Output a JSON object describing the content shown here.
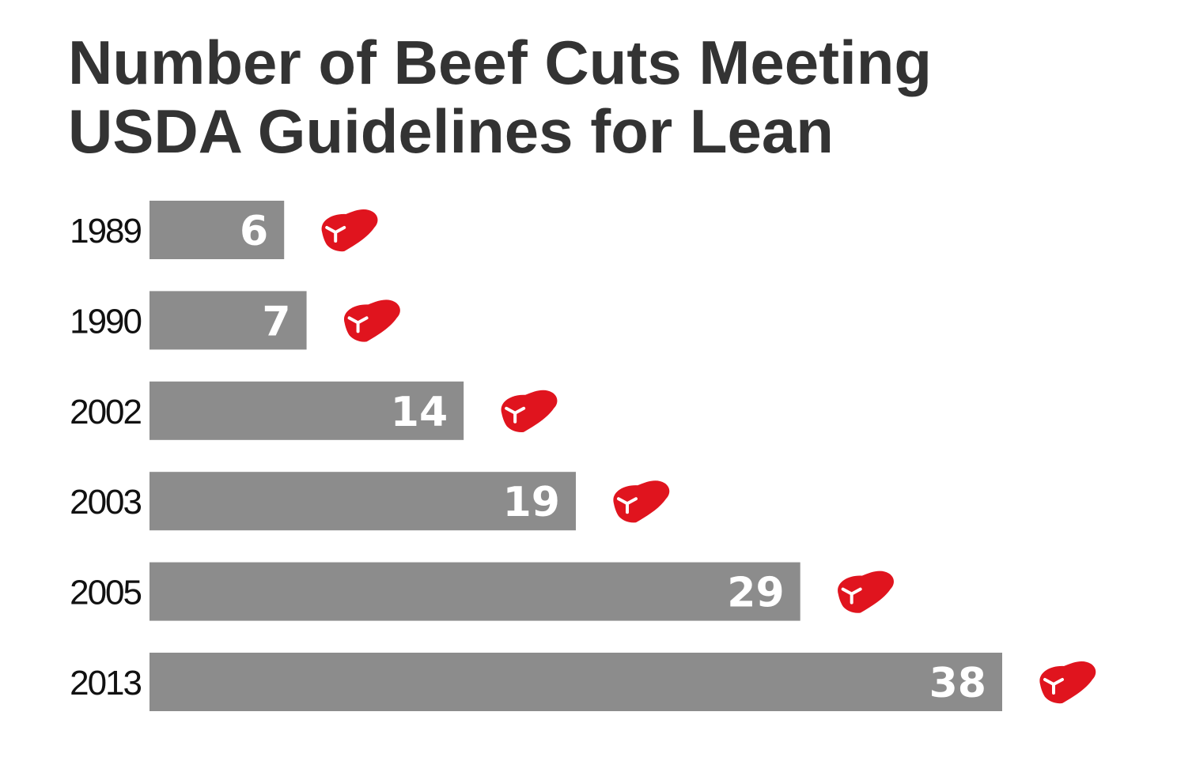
{
  "chart_data": {
    "type": "bar",
    "orientation": "horizontal",
    "title_lines": [
      "Number of Beef Cuts Meeting",
      "USDA Guidelines for Lean"
    ],
    "categories": [
      "1989",
      "1990",
      "2002",
      "2003",
      "2005",
      "2013"
    ],
    "values": [
      6,
      7,
      14,
      19,
      29,
      38
    ],
    "xlim": [
      0,
      38
    ],
    "grid": false,
    "legend": "none",
    "marker_icon": "steak-icon",
    "colors": {
      "bar": "#8c8c8c",
      "value_label": "#ffffff",
      "icon": "#e0141e",
      "title": "#333333",
      "category_label": "#111111"
    }
  }
}
